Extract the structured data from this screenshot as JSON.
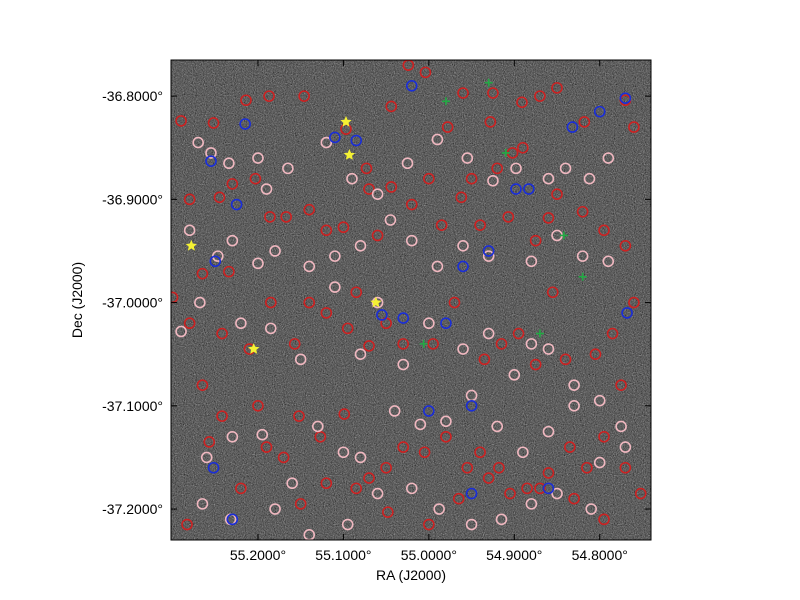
{
  "chart_data": {
    "type": "scatter",
    "title": "",
    "xlabel": "RA (J2000)",
    "ylabel": "Dec (J2000)",
    "xlim": [
      55.3018,
      54.74
    ],
    "ylim": [
      -37.23,
      -36.765
    ],
    "x_reversed": true,
    "grid": false,
    "legend": "none",
    "background": "sky image (grayscale noise field with point sources)",
    "x_ticks": [
      {
        "value": 55.2,
        "label": "55.2000°"
      },
      {
        "value": 55.1,
        "label": "55.1000°"
      },
      {
        "value": 55.0,
        "label": "55.0000°"
      },
      {
        "value": 54.9,
        "label": "54.9000°"
      },
      {
        "value": 54.8,
        "label": "54.8000°"
      }
    ],
    "y_ticks": [
      {
        "value": -36.8,
        "label": "-36.8000°"
      },
      {
        "value": -36.9,
        "label": "-36.9000°"
      },
      {
        "value": -37.0,
        "label": "-37.0000°"
      },
      {
        "value": -37.1,
        "label": "-37.1000°"
      },
      {
        "value": -37.2,
        "label": "-37.2000°"
      }
    ],
    "series": [
      {
        "color": "#cc2222",
        "marker": "circle",
        "points": [
          [
            55.29,
            -36.824
          ],
          [
            55.252,
            -36.826
          ],
          [
            55.214,
            -36.804
          ],
          [
            55.187,
            -36.8
          ],
          [
            55.146,
            -36.8
          ],
          [
            55.097,
            -36.832
          ],
          [
            55.073,
            -36.87
          ],
          [
            55.044,
            -36.81
          ],
          [
            55.024,
            -36.77
          ],
          [
            55.004,
            -36.777
          ],
          [
            54.978,
            -36.83
          ],
          [
            54.96,
            -36.797
          ],
          [
            54.925,
            -36.797
          ],
          [
            54.891,
            -36.806
          ],
          [
            54.87,
            -36.8
          ],
          [
            54.85,
            -36.792
          ],
          [
            54.818,
            -36.825
          ],
          [
            54.77,
            -36.804
          ],
          [
            54.76,
            -36.83
          ],
          [
            54.928,
            -36.825
          ],
          [
            54.902,
            -36.855
          ],
          [
            54.89,
            -36.85
          ],
          [
            55.28,
            -36.9
          ],
          [
            55.245,
            -36.898
          ],
          [
            55.23,
            -36.885
          ],
          [
            55.203,
            -36.88
          ],
          [
            55.186,
            -36.917
          ],
          [
            55.167,
            -36.917
          ],
          [
            55.14,
            -36.91
          ],
          [
            55.12,
            -36.93
          ],
          [
            55.1,
            -36.927
          ],
          [
            55.07,
            -36.89
          ],
          [
            55.06,
            -36.935
          ],
          [
            55.044,
            -36.888
          ],
          [
            55.02,
            -36.905
          ],
          [
            55.0,
            -36.88
          ],
          [
            54.985,
            -36.925
          ],
          [
            54.962,
            -36.898
          ],
          [
            54.95,
            -36.88
          ],
          [
            54.94,
            -36.925
          ],
          [
            54.92,
            -36.87
          ],
          [
            54.907,
            -36.917
          ],
          [
            54.875,
            -36.94
          ],
          [
            54.86,
            -36.918
          ],
          [
            54.85,
            -36.895
          ],
          [
            54.82,
            -36.912
          ],
          [
            54.795,
            -36.93
          ],
          [
            54.77,
            -36.945
          ],
          [
            55.3,
            -36.995
          ],
          [
            55.28,
            -37.02
          ],
          [
            55.265,
            -36.972
          ],
          [
            55.242,
            -37.03
          ],
          [
            55.234,
            -36.97
          ],
          [
            55.21,
            -37.045
          ],
          [
            55.185,
            -37.0
          ],
          [
            55.157,
            -37.04
          ],
          [
            55.14,
            -37.0
          ],
          [
            55.12,
            -37.01
          ],
          [
            55.095,
            -37.025
          ],
          [
            55.085,
            -36.99
          ],
          [
            55.07,
            -37.042
          ],
          [
            55.05,
            -37.02
          ],
          [
            55.03,
            -37.04
          ],
          [
            54.995,
            -37.04
          ],
          [
            54.97,
            -37.0
          ],
          [
            54.935,
            -37.055
          ],
          [
            54.915,
            -37.04
          ],
          [
            54.895,
            -37.03
          ],
          [
            54.875,
            -37.06
          ],
          [
            54.855,
            -36.99
          ],
          [
            54.84,
            -37.055
          ],
          [
            54.805,
            -37.05
          ],
          [
            54.785,
            -37.03
          ],
          [
            54.76,
            -37.0
          ],
          [
            55.265,
            -37.08
          ],
          [
            55.242,
            -37.11
          ],
          [
            55.2,
            -37.1
          ],
          [
            55.17,
            -37.15
          ],
          [
            55.152,
            -37.11
          ],
          [
            55.127,
            -37.13
          ],
          [
            55.099,
            -37.108
          ],
          [
            55.07,
            -37.17
          ],
          [
            55.05,
            -37.16
          ],
          [
            55.03,
            -37.14
          ],
          [
            55.005,
            -37.145
          ],
          [
            54.98,
            -37.13
          ],
          [
            54.955,
            -37.16
          ],
          [
            54.94,
            -37.145
          ],
          [
            54.918,
            -37.16
          ],
          [
            54.885,
            -37.18
          ],
          [
            54.86,
            -37.165
          ],
          [
            54.835,
            -37.14
          ],
          [
            54.815,
            -37.16
          ],
          [
            54.795,
            -37.13
          ],
          [
            54.775,
            -37.08
          ],
          [
            54.752,
            -37.185
          ],
          [
            55.283,
            -37.215
          ],
          [
            55.257,
            -37.135
          ],
          [
            55.22,
            -37.18
          ],
          [
            55.19,
            -37.14
          ],
          [
            55.15,
            -37.195
          ],
          [
            55.12,
            -37.175
          ],
          [
            55.085,
            -37.18
          ],
          [
            55.048,
            -37.203
          ],
          [
            55.0,
            -37.215
          ],
          [
            54.965,
            -37.19
          ],
          [
            54.93,
            -37.17
          ],
          [
            54.905,
            -37.185
          ],
          [
            54.87,
            -37.18
          ],
          [
            54.83,
            -37.19
          ],
          [
            54.795,
            -37.21
          ],
          [
            54.77,
            -37.16
          ]
        ]
      },
      {
        "color": "#f0b8c0",
        "marker": "circle",
        "points": [
          [
            55.27,
            -36.845
          ],
          [
            55.255,
            -36.855
          ],
          [
            55.234,
            -36.865
          ],
          [
            55.2,
            -36.86
          ],
          [
            55.19,
            -36.89
          ],
          [
            55.165,
            -36.87
          ],
          [
            55.12,
            -36.845
          ],
          [
            55.09,
            -36.88
          ],
          [
            55.06,
            -36.895
          ],
          [
            55.025,
            -36.865
          ],
          [
            54.99,
            -36.842
          ],
          [
            54.955,
            -36.86
          ],
          [
            54.925,
            -36.882
          ],
          [
            54.898,
            -36.87
          ],
          [
            54.86,
            -36.88
          ],
          [
            54.84,
            -36.87
          ],
          [
            54.812,
            -36.88
          ],
          [
            54.79,
            -36.86
          ],
          [
            55.28,
            -36.93
          ],
          [
            55.247,
            -36.955
          ],
          [
            55.23,
            -36.94
          ],
          [
            55.2,
            -36.962
          ],
          [
            55.18,
            -36.95
          ],
          [
            55.14,
            -36.965
          ],
          [
            55.11,
            -36.955
          ],
          [
            55.08,
            -36.945
          ],
          [
            55.045,
            -36.92
          ],
          [
            55.02,
            -36.94
          ],
          [
            54.99,
            -36.965
          ],
          [
            54.96,
            -36.945
          ],
          [
            54.93,
            -36.955
          ],
          [
            54.88,
            -36.96
          ],
          [
            54.85,
            -36.935
          ],
          [
            54.82,
            -36.955
          ],
          [
            54.79,
            -36.96
          ],
          [
            55.29,
            -37.028
          ],
          [
            55.268,
            -37.0
          ],
          [
            55.22,
            -37.02
          ],
          [
            55.185,
            -37.025
          ],
          [
            55.15,
            -37.055
          ],
          [
            55.11,
            -36.985
          ],
          [
            55.08,
            -37.05
          ],
          [
            55.06,
            -37.0
          ],
          [
            55.03,
            -37.06
          ],
          [
            55.0,
            -37.02
          ],
          [
            54.96,
            -37.045
          ],
          [
            54.93,
            -37.03
          ],
          [
            54.9,
            -37.07
          ],
          [
            54.88,
            -37.04
          ],
          [
            54.86,
            -37.045
          ],
          [
            54.83,
            -37.08
          ],
          [
            54.8,
            -37.095
          ],
          [
            54.775,
            -37.12
          ],
          [
            55.26,
            -37.15
          ],
          [
            55.23,
            -37.13
          ],
          [
            55.195,
            -37.128
          ],
          [
            55.16,
            -37.175
          ],
          [
            55.13,
            -37.12
          ],
          [
            55.1,
            -37.145
          ],
          [
            55.08,
            -37.15
          ],
          [
            55.04,
            -37.105
          ],
          [
            55.01,
            -37.118
          ],
          [
            54.98,
            -37.115
          ],
          [
            54.95,
            -37.09
          ],
          [
            54.92,
            -37.12
          ],
          [
            54.89,
            -37.145
          ],
          [
            54.86,
            -37.125
          ],
          [
            54.83,
            -37.1
          ],
          [
            54.8,
            -37.155
          ],
          [
            54.77,
            -37.14
          ],
          [
            55.265,
            -37.195
          ],
          [
            55.232,
            -37.21
          ],
          [
            55.18,
            -37.2
          ],
          [
            55.14,
            -37.225
          ],
          [
            55.095,
            -37.215
          ],
          [
            55.06,
            -37.185
          ],
          [
            55.02,
            -37.18
          ],
          [
            54.988,
            -37.2
          ],
          [
            54.95,
            -37.215
          ],
          [
            54.915,
            -37.21
          ],
          [
            54.88,
            -37.195
          ],
          [
            54.85,
            -37.185
          ],
          [
            54.81,
            -37.2
          ]
        ]
      },
      {
        "color": "#1a2ed8",
        "marker": "circle",
        "points": [
          [
            55.255,
            -36.863
          ],
          [
            55.25,
            -36.96
          ],
          [
            55.252,
            -37.16
          ],
          [
            55.23,
            -37.21
          ],
          [
            55.215,
            -36.827
          ],
          [
            55.11,
            -36.84
          ],
          [
            55.085,
            -36.843
          ],
          [
            55.055,
            -37.012
          ],
          [
            55.03,
            -37.015
          ],
          [
            54.98,
            -37.02
          ],
          [
            54.96,
            -36.965
          ],
          [
            54.95,
            -37.1
          ],
          [
            54.95,
            -37.185
          ],
          [
            54.93,
            -36.95
          ],
          [
            54.898,
            -36.89
          ],
          [
            54.883,
            -36.89
          ],
          [
            54.86,
            -37.18
          ],
          [
            54.832,
            -36.83
          ],
          [
            54.8,
            -36.815
          ],
          [
            54.77,
            -36.802
          ],
          [
            54.768,
            -37.01
          ],
          [
            55.02,
            -36.79
          ],
          [
            55.0,
            -37.105
          ],
          [
            55.225,
            -36.905
          ]
        ]
      },
      {
        "color": "#22aa44",
        "marker": "plus",
        "points": [
          [
            54.98,
            -36.805
          ],
          [
            54.91,
            -36.855
          ],
          [
            54.842,
            -36.935
          ],
          [
            54.82,
            -36.975
          ],
          [
            55.006,
            -37.04
          ],
          [
            54.87,
            -37.03
          ],
          [
            54.93,
            -36.787
          ]
        ]
      },
      {
        "color": "#f5f233",
        "marker": "star",
        "points": [
          [
            55.097,
            -36.825
          ],
          [
            55.093,
            -36.857
          ],
          [
            55.278,
            -36.945
          ],
          [
            55.062,
            -37.0
          ],
          [
            55.205,
            -37.045
          ]
        ]
      }
    ]
  }
}
